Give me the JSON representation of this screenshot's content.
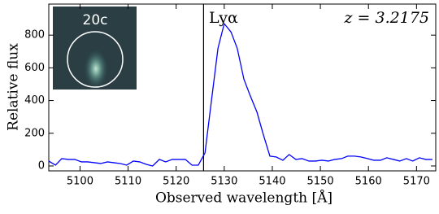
{
  "chart_data": {
    "type": "line",
    "xlabel": "Observed wavelength [Å]",
    "ylabel": "Relative flux",
    "annotations": [
      {
        "text": "Lyα",
        "x": 5125.7
      },
      {
        "text": "z = 3.2175"
      }
    ],
    "inset_label": "20c",
    "xlim": [
      5093.5,
      5174
    ],
    "ylim": [
      -30,
      990
    ],
    "xticks": [
      5100,
      5110,
      5120,
      5130,
      5140,
      5150,
      5160,
      5170
    ],
    "yticks": [
      0,
      200,
      400,
      600,
      800
    ],
    "grid": false,
    "color": "#0000ff",
    "x": [
      5093.5,
      5094.9,
      5096.2,
      5097.6,
      5098.9,
      5100.3,
      5101.6,
      5103.0,
      5104.3,
      5105.7,
      5107.0,
      5108.4,
      5109.7,
      5111.1,
      5112.4,
      5113.8,
      5115.1,
      5116.5,
      5117.8,
      5119.2,
      5120.6,
      5121.9,
      5123.3,
      5124.6,
      5126.0,
      5127.3,
      5128.7,
      5130.0,
      5131.4,
      5132.7,
      5134.1,
      5135.4,
      5136.8,
      5138.1,
      5139.5,
      5140.8,
      5142.2,
      5143.5,
      5144.9,
      5146.2,
      5147.6,
      5149.0,
      5150.3,
      5151.7,
      5153.0,
      5154.4,
      5155.7,
      5157.1,
      5158.4,
      5159.8,
      5161.1,
      5162.5,
      5163.8,
      5165.2,
      5166.5,
      5167.9,
      5169.2,
      5170.6,
      5171.9,
      5173.3
    ],
    "values": [
      30,
      5,
      45,
      40,
      40,
      25,
      25,
      20,
      15,
      25,
      20,
      15,
      5,
      30,
      25,
      10,
      0,
      40,
      25,
      40,
      40,
      40,
      5,
      5,
      80,
      390,
      720,
      870,
      820,
      720,
      530,
      430,
      330,
      195,
      60,
      55,
      35,
      70,
      40,
      45,
      30,
      30,
      35,
      30,
      40,
      45,
      60,
      60,
      55,
      45,
      35,
      35,
      50,
      40,
      30,
      45,
      30,
      50,
      40,
      40
    ]
  }
}
